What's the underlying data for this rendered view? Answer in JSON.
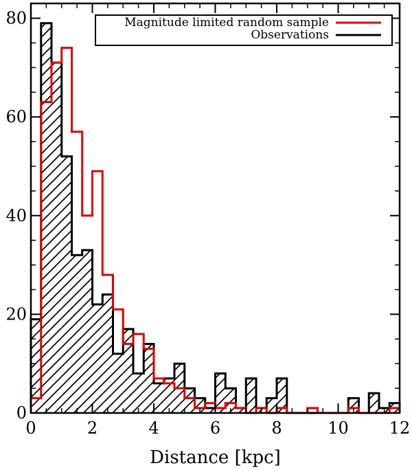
{
  "chart_data": {
    "type": "bar",
    "subtype": "histogram",
    "title": "",
    "xlabel": "Distance [kpc]",
    "ylabel": "",
    "xlim": [
      0,
      12
    ],
    "ylim": [
      0,
      83
    ],
    "x_ticks": [
      0,
      2,
      4,
      6,
      8,
      10,
      12
    ],
    "y_ticks": [
      0,
      20,
      40,
      60,
      80
    ],
    "x_tick_labels": [
      "0",
      "2",
      "4",
      "6",
      "8",
      "10",
      "12"
    ],
    "y_tick_labels": [
      "0",
      "20",
      "40",
      "60",
      "80"
    ],
    "bin_width": 0.33,
    "bin_edges": [
      0,
      0.33,
      0.67,
      1.0,
      1.33,
      1.67,
      2.0,
      2.33,
      2.67,
      3.0,
      3.33,
      3.67,
      4.0,
      4.33,
      4.67,
      5.0,
      5.33,
      5.67,
      6.0,
      6.33,
      6.67,
      7.0,
      7.33,
      7.67,
      8.0,
      8.33,
      8.67,
      9.0,
      9.33,
      9.67,
      10.0,
      10.33,
      10.67,
      11.0,
      11.33,
      11.67,
      12.0
    ],
    "grid": false,
    "legend_position": "top-right",
    "series": [
      {
        "name": "Magnitude limited random sample",
        "style": "step",
        "color": "#e00000",
        "values": [
          3,
          63,
          71,
          74,
          57,
          40,
          49,
          28,
          21,
          14,
          16,
          13,
          7,
          6,
          5,
          3,
          1,
          2,
          1,
          2,
          1,
          0,
          1,
          0,
          1,
          0,
          0,
          1,
          0,
          0,
          0,
          1,
          0,
          0,
          0,
          1
        ]
      },
      {
        "name": "Observations",
        "style": "hatched",
        "color": "#000000",
        "values": [
          19,
          79,
          71,
          52,
          32,
          33,
          22,
          24,
          12,
          17,
          8,
          14,
          6,
          7,
          10,
          5,
          3,
          1,
          8,
          5,
          1,
          7,
          1,
          3,
          7,
          0,
          0,
          0,
          0,
          0,
          0,
          3,
          0,
          4,
          1,
          2
        ]
      }
    ]
  }
}
